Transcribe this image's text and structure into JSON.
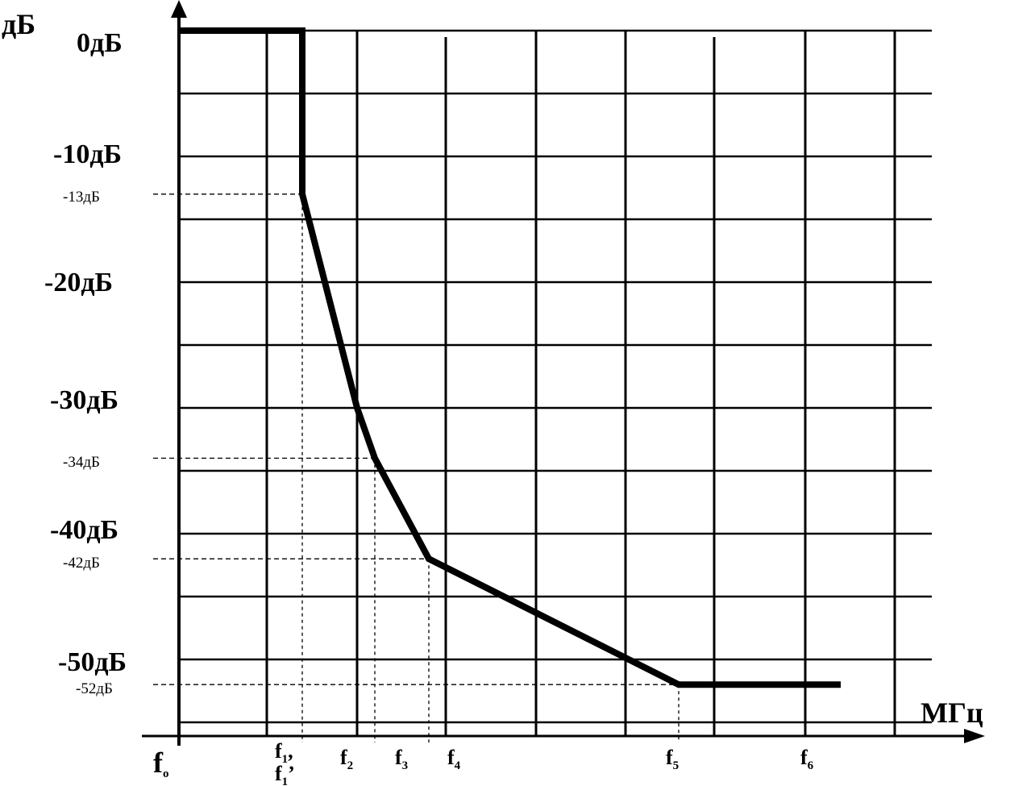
{
  "chart_data": {
    "type": "line",
    "ylabel": "дБ",
    "xlabel": "МГц",
    "ylim": [
      -56,
      0
    ],
    "grid": true,
    "y_tick_labels": [
      "0дБ",
      "-10дБ",
      "-20дБ",
      "-30дБ",
      "-40дБ",
      "-50дБ"
    ],
    "y_marked_labels": [
      "-13дБ",
      "-34дБ",
      "-42дБ",
      "-52дБ"
    ],
    "x_tick_labels": [
      {
        "main": "f",
        "sub": "o"
      },
      {
        "main": "f",
        "sub": "1",
        "suffix": ",",
        "second": "f",
        "second_sub": "1",
        "second_suffix": "’"
      },
      {
        "main": "f",
        "sub": "2"
      },
      {
        "main": "f",
        "sub": "3"
      },
      {
        "main": "f",
        "sub": "4"
      },
      {
        "main": "f",
        "sub": "5"
      },
      {
        "main": "f",
        "sub": "6"
      }
    ],
    "series": [
      {
        "points": [
          {
            "x": "f0",
            "y": 0
          },
          {
            "x": "f1",
            "y": 0
          },
          {
            "x": "f1'",
            "y": -13
          },
          {
            "x": "f2",
            "y": -30
          },
          {
            "x": "f2+",
            "y": -34
          },
          {
            "x": "f3",
            "y": -42
          },
          {
            "x": "f5",
            "y": -52
          },
          {
            "x": "f6+",
            "y": -52
          }
        ]
      }
    ],
    "marked_points": [
      {
        "y": -13,
        "x": "f1'"
      },
      {
        "y": -34,
        "x": "f2+"
      },
      {
        "y": -42,
        "x": "f3"
      },
      {
        "y": -52,
        "x": "f5"
      }
    ]
  }
}
